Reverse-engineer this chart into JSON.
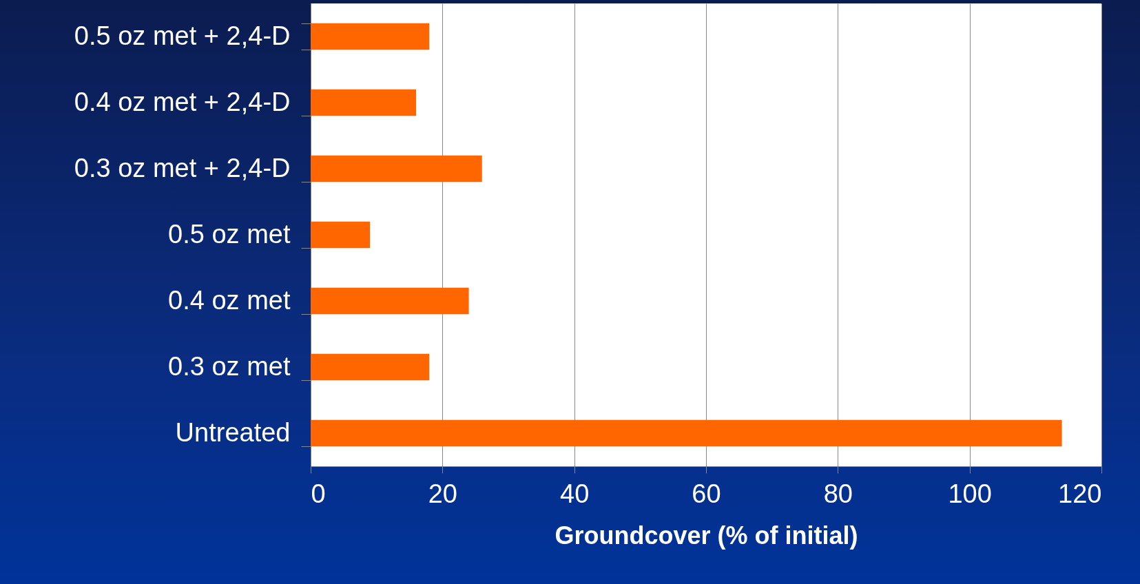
{
  "chart_data": {
    "type": "bar",
    "orientation": "horizontal",
    "xlabel": "Groundcover (% of initial)",
    "categories": [
      "0.5 oz met + 2,4-D",
      "0.4 oz met + 2,4-D",
      "0.3 oz met + 2,4-D",
      "0.5 oz met",
      "0.4 oz met",
      "0.3 oz met",
      "Untreated"
    ],
    "values": [
      18,
      16,
      26,
      9,
      24,
      18,
      114
    ],
    "color": "#ff6600",
    "xlim": [
      0,
      120
    ],
    "xticks": [
      0,
      20,
      40,
      60,
      80,
      100,
      120
    ],
    "grid": "x"
  }
}
